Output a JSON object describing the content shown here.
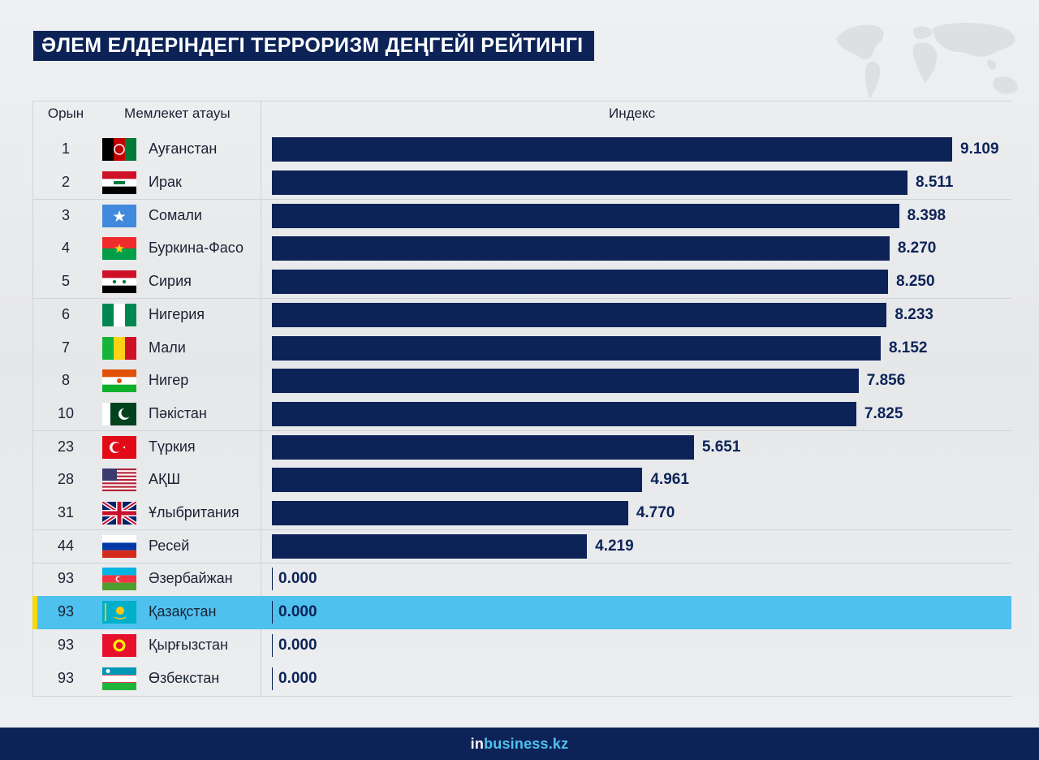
{
  "title": "ӘЛЕМ ЕЛДЕРІНДЕГІ ТЕРРОРИЗМ ДЕҢГЕЙІ РЕЙТИНГІ",
  "headers": {
    "rank": "Орын",
    "country": "Мемлекет атауы",
    "index": "Индекс"
  },
  "colors": {
    "bar": "#0d2358",
    "highlight": "#4fc1ef",
    "highlight_marker": "#f5d90a",
    "footer": "#0d2358"
  },
  "chart_data": {
    "type": "bar",
    "title": "ӘЛЕМ ЕЛДЕРІНДЕГІ ТЕРРОРИЗМ ДЕҢГЕЙІ РЕЙТИНГІ",
    "orientation": "horizontal",
    "xlabel": "Индекс",
    "ylabel": "Мемлекет атауы",
    "xlim": [
      0,
      9.109
    ],
    "grid": false,
    "legend": "none",
    "highlighted_category": "Қазақстан",
    "rows": [
      {
        "rank": "1",
        "country": "Ауғанстан",
        "value": 9.109,
        "label": "9.109",
        "flag": "afghanistan-flag-icon"
      },
      {
        "rank": "2",
        "country": "Ирак",
        "value": 8.511,
        "label": "8.511",
        "flag": "iraq-flag-icon"
      },
      {
        "rank": "3",
        "country": "Сомали",
        "value": 8.398,
        "label": "8.398",
        "flag": "somalia-flag-icon"
      },
      {
        "rank": "4",
        "country": "Буркина-Фасо",
        "value": 8.27,
        "label": "8.270",
        "flag": "burkina-faso-flag-icon"
      },
      {
        "rank": "5",
        "country": "Сирия",
        "value": 8.25,
        "label": "8.250",
        "flag": "syria-flag-icon"
      },
      {
        "rank": "6",
        "country": "Нигерия",
        "value": 8.233,
        "label": "8.233",
        "flag": "nigeria-flag-icon"
      },
      {
        "rank": "7",
        "country": "Мали",
        "value": 8.152,
        "label": "8.152",
        "flag": "mali-flag-icon"
      },
      {
        "rank": "8",
        "country": "Нигер",
        "value": 7.856,
        "label": "7.856",
        "flag": "niger-flag-icon"
      },
      {
        "rank": "10",
        "country": "Пәкістан",
        "value": 7.825,
        "label": "7.825",
        "flag": "pakistan-flag-icon"
      },
      {
        "rank": "23",
        "country": "Түркия",
        "value": 5.651,
        "label": "5.651",
        "flag": "turkey-flag-icon"
      },
      {
        "rank": "28",
        "country": "АҚШ",
        "value": 4.961,
        "label": "4.961",
        "flag": "usa-flag-icon"
      },
      {
        "rank": "31",
        "country": "Ұлыбритания",
        "value": 4.77,
        "label": "4.770",
        "flag": "uk-flag-icon"
      },
      {
        "rank": "44",
        "country": "Ресей",
        "value": 4.219,
        "label": "4.219",
        "flag": "russia-flag-icon"
      },
      {
        "rank": "93",
        "country": "Әзербайжан",
        "value": 0.0,
        "label": "0.000",
        "flag": "azerbaijan-flag-icon"
      },
      {
        "rank": "93",
        "country": "Қазақстан",
        "value": 0.0,
        "label": "0.000",
        "flag": "kazakhstan-flag-icon"
      },
      {
        "rank": "93",
        "country": "Қырғызстан",
        "value": 0.0,
        "label": "0.000",
        "flag": "kyrgyzstan-flag-icon"
      },
      {
        "rank": "93",
        "country": "Өзбекстан",
        "value": 0.0,
        "label": "0.000",
        "flag": "uzbekistan-flag-icon"
      }
    ]
  },
  "footer": {
    "brand_part1": "in",
    "brand_part2": "business.kz"
  }
}
